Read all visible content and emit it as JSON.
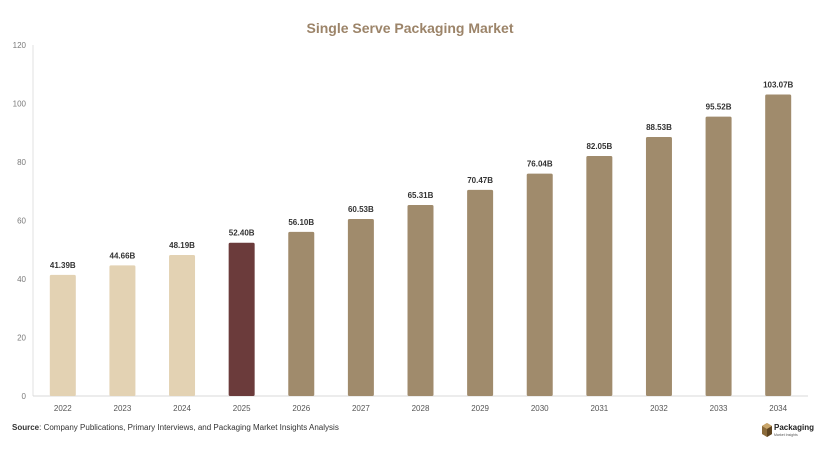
{
  "chart_data": {
    "type": "bar",
    "title": "Single Serve Packaging Market",
    "categories": [
      "2022",
      "2023",
      "2024",
      "2025",
      "2026",
      "2027",
      "2028",
      "2029",
      "2030",
      "2031",
      "2032",
      "2033",
      "2034"
    ],
    "values": [
      41.39,
      44.66,
      48.19,
      52.4,
      56.1,
      60.53,
      65.31,
      70.47,
      76.04,
      82.05,
      88.53,
      95.52,
      103.07
    ],
    "data_labels": [
      "41.39B",
      "44.66B",
      "48.19B",
      "52.40B",
      "56.10B",
      "60.53B",
      "65.31B",
      "70.47B",
      "76.04B",
      "82.05B",
      "88.53B",
      "95.52B",
      "103.07B"
    ],
    "bar_colors": [
      "#e3d2b3",
      "#e3d2b3",
      "#e3d2b3",
      "#6b3b3b",
      "#a08b6c",
      "#a08b6c",
      "#a08b6c",
      "#a08b6c",
      "#a08b6c",
      "#a08b6c",
      "#a08b6c",
      "#a08b6c",
      "#a08b6c"
    ],
    "ylim": [
      0,
      120
    ],
    "yticks": [
      "0",
      "20",
      "40",
      "60",
      "80",
      "100",
      "120"
    ],
    "grid": false,
    "legend": "none"
  },
  "source": {
    "label": "Source",
    "text": ": Company Publications, Primary Interviews, and Packaging Market Insights Analysis"
  },
  "logo": {
    "name": "Packaging",
    "tagline": "Market Insights"
  },
  "colors": {
    "title": "#9c8469",
    "axis": "#d9d9d9"
  }
}
